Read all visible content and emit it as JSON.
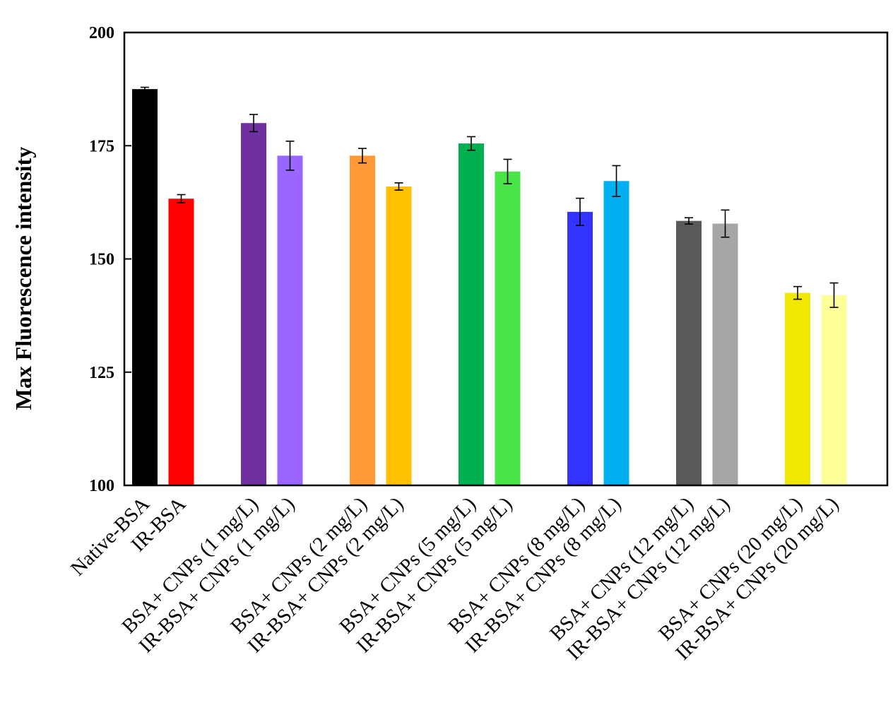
{
  "chart_data": {
    "type": "bar",
    "title": "",
    "xlabel": "",
    "ylabel": "Max Fluorescence intensity",
    "ylim": [
      100,
      200
    ],
    "yticks": [
      100,
      125,
      150,
      175,
      200
    ],
    "grid": false,
    "legend": "none",
    "categories": [
      "Native-BSA",
      "IR-BSA",
      "BSA+ CNPs (1 mg/L)",
      "IR-BSA+ CNPs (1 mg/L)",
      "BSA+ CNPs (2 mg/L)",
      "IR-BSA+ CNPs (2 mg/L)",
      "BSA+ CNPs (5 mg/L)",
      "IR-BSA+ CNPs (5 mg/L)",
      "BSA+ CNPs (8 mg/L)",
      "IR-BSA+ CNPs (8 mg/L)",
      "BSA+ CNPs (12 mg/L)",
      "IR-BSA+ CNPs (12 mg/L)",
      "BSA+ CNPs (20 mg/L)",
      "IR-BSA+ CNPs (20 mg/L)"
    ],
    "values": [
      187.5,
      163.3,
      180.0,
      172.8,
      172.8,
      166.0,
      175.5,
      169.3,
      160.4,
      167.2,
      158.4,
      157.8,
      142.5,
      142.0
    ],
    "errors": [
      0.4,
      0.9,
      1.9,
      3.2,
      1.6,
      0.8,
      1.5,
      2.7,
      3.0,
      3.4,
      0.7,
      3.0,
      1.4,
      2.7
    ],
    "colors": [
      "#000000",
      "#ff0000",
      "#7030a0",
      "#9966ff",
      "#ff9933",
      "#ffc000",
      "#00b050",
      "#47e547",
      "#3333ff",
      "#00b0f0",
      "#595959",
      "#a6a6a6",
      "#f0e800",
      "#ffff99"
    ]
  }
}
